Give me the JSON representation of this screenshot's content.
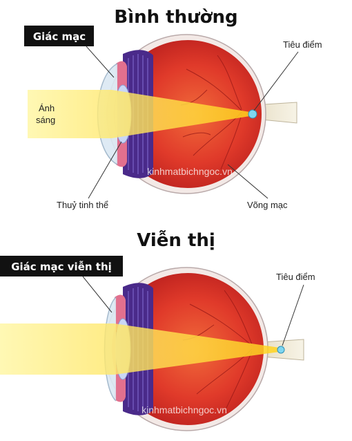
{
  "normal": {
    "title": "Bình thường",
    "cornea_label": "Giác mạc",
    "focus_label": "Tiêu điểm",
    "light_label_line1": "Ánh",
    "light_label_line2": "sáng",
    "lens_label": "Thuỷ tinh thể",
    "retina_label": "Võng mạc",
    "watermark": "kinhmatbichngoc.vn"
  },
  "hyperopia": {
    "title": "Viễn thị",
    "cornea_label": "Giác mạc viễn thị",
    "focus_label": "Tiêu điểm",
    "watermark": "kinhmatbichngoc.vn"
  },
  "colors": {
    "eye_red": "#d9332b",
    "light_beam": "#ffe23a",
    "focus_point": "#7fd6f0",
    "label_box": "#111111"
  }
}
